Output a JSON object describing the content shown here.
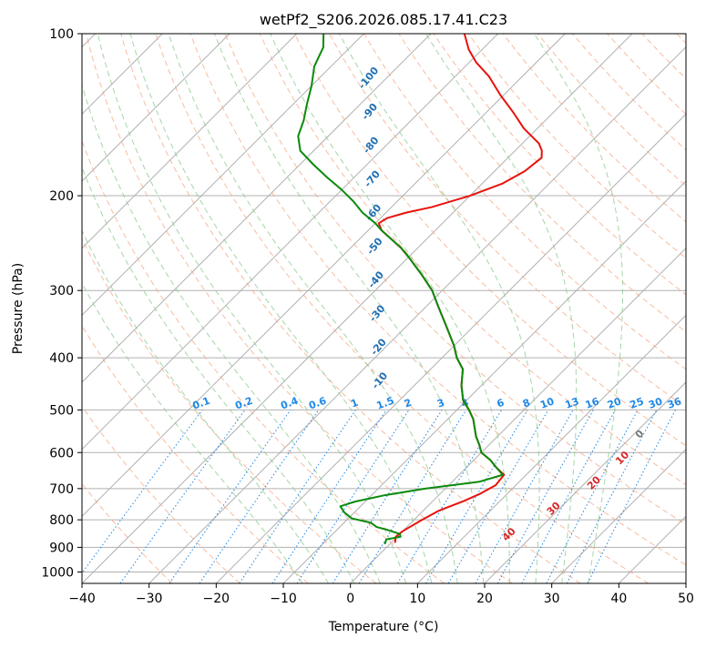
{
  "chart_data": {
    "type": "line",
    "chart_kind": "skew-T log-P diagram",
    "title": "wetPf2_S206.2026.085.17.41.C23",
    "xlabel": "Temperature (°C)",
    "ylabel": "Pressure (hPa)",
    "xlim": [
      -40,
      50
    ],
    "ylim": [
      1050,
      100
    ],
    "x_ticks": [
      -40,
      -30,
      -20,
      -10,
      0,
      10,
      20,
      30,
      40,
      50
    ],
    "x_tick_labels": [
      "−40",
      "−30",
      "−20",
      "−10",
      "0",
      "10",
      "20",
      "30",
      "40",
      "50"
    ],
    "y_ticks": [
      100,
      200,
      300,
      400,
      500,
      600,
      700,
      800,
      900,
      1000
    ],
    "y_tick_labels": [
      "100",
      "200",
      "300",
      "400",
      "500",
      "600",
      "700",
      "800",
      "900",
      "1000"
    ],
    "grid": true,
    "series": [
      {
        "name": "Temperature",
        "color": "#e8120c",
        "points": [
          [
            880,
            0.5
          ],
          [
            860,
            -0.2
          ],
          [
            840,
            0
          ],
          [
            800,
            1.2
          ],
          [
            770,
            2.3
          ],
          [
            740,
            4.5
          ],
          [
            715,
            6.0
          ],
          [
            690,
            7.0
          ],
          [
            660,
            6.7
          ],
          [
            640,
            4.5
          ],
          [
            620,
            2.5
          ],
          [
            600,
            0
          ],
          [
            580,
            -1.5
          ],
          [
            560,
            -3.2
          ],
          [
            520,
            -6.2
          ],
          [
            500,
            -8.2
          ],
          [
            480,
            -10.5
          ],
          [
            450,
            -13.0
          ],
          [
            420,
            -15.2
          ],
          [
            400,
            -17.8
          ],
          [
            380,
            -20.0
          ],
          [
            350,
            -24.0
          ],
          [
            320,
            -28.4
          ],
          [
            300,
            -31.5
          ],
          [
            280,
            -35.5
          ],
          [
            260,
            -40.0
          ],
          [
            250,
            -42.5
          ],
          [
            240,
            -45.5
          ],
          [
            232,
            -48.0
          ],
          [
            225,
            -49.5
          ],
          [
            220,
            -49.0
          ],
          [
            215,
            -47.0
          ],
          [
            210,
            -44.0
          ],
          [
            200,
            -40.0
          ],
          [
            190,
            -37.0
          ],
          [
            180,
            -35.5
          ],
          [
            170,
            -35.0
          ],
          [
            165,
            -36.0
          ],
          [
            160,
            -37.5
          ],
          [
            150,
            -42.0
          ],
          [
            140,
            -46.0
          ],
          [
            130,
            -50.5
          ],
          [
            120,
            -55.0
          ],
          [
            113,
            -59.0
          ],
          [
            107,
            -62.0
          ],
          [
            100,
            -65.0
          ]
        ]
      },
      {
        "name": "Dewpoint",
        "color": "#0b8a0b",
        "points": [
          [
            885,
            -0.8
          ],
          [
            870,
            -1.2
          ],
          [
            860,
            0.5
          ],
          [
            850,
            0
          ],
          [
            835,
            -2.5
          ],
          [
            825,
            -4.5
          ],
          [
            810,
            -6.0
          ],
          [
            795,
            -9.5
          ],
          [
            775,
            -11.5
          ],
          [
            755,
            -13.0
          ],
          [
            740,
            -11.5
          ],
          [
            720,
            -8.0
          ],
          [
            700,
            -3.0
          ],
          [
            680,
            4.0
          ],
          [
            660,
            6.5
          ],
          [
            640,
            4.5
          ],
          [
            620,
            2.5
          ],
          [
            600,
            0
          ],
          [
            580,
            -1.5
          ],
          [
            560,
            -3.2
          ],
          [
            520,
            -6.2
          ],
          [
            500,
            -8.2
          ],
          [
            480,
            -10.5
          ],
          [
            450,
            -13.0
          ],
          [
            420,
            -15.2
          ],
          [
            400,
            -17.8
          ],
          [
            380,
            -20.0
          ],
          [
            350,
            -24.0
          ],
          [
            320,
            -28.4
          ],
          [
            300,
            -31.5
          ],
          [
            280,
            -35.5
          ],
          [
            260,
            -40.0
          ],
          [
            250,
            -42.5
          ],
          [
            240,
            -45.5
          ],
          [
            232,
            -48.0
          ],
          [
            225,
            -50.0
          ],
          [
            215,
            -53.5
          ],
          [
            205,
            -56.5
          ],
          [
            195,
            -60.0
          ],
          [
            185,
            -64.0
          ],
          [
            175,
            -68.0
          ],
          [
            165,
            -72.0
          ],
          [
            155,
            -74.5
          ],
          [
            145,
            -76.0
          ],
          [
            135,
            -78.0
          ],
          [
            125,
            -80.0
          ],
          [
            115,
            -82.5
          ],
          [
            106,
            -84.0
          ],
          [
            100,
            -86.0
          ]
        ]
      }
    ],
    "mixing_ratio_lines": {
      "label_pressure": 500,
      "values": [
        0.1,
        0.2,
        0.4,
        0.6,
        1,
        1.5,
        2,
        3,
        4,
        6,
        8,
        10,
        13,
        16,
        20,
        25,
        30,
        36
      ],
      "labels": [
        "0.1",
        "0.2",
        "0.4",
        "0.6",
        "1",
        "1.5",
        "2",
        "3",
        "4",
        "6",
        "8",
        "10",
        "13",
        "16",
        "20",
        "25",
        "30",
        "36"
      ]
    },
    "moist_adiabat_labels": [
      "-100",
      "-90",
      "-80",
      "-70",
      "-60",
      "-50",
      "-40",
      "-30",
      "-20",
      "-10"
    ],
    "moist_adiabat_label_values": [
      -100,
      -90,
      -80,
      -70,
      -60,
      -50,
      -40,
      -30,
      -20,
      -10
    ],
    "dry_adiabat_labels": [
      "0",
      "10",
      "20",
      "30",
      "40"
    ],
    "dry_adiabat_label_values": [
      0,
      10,
      20,
      30,
      40
    ],
    "colors": {
      "isotherm": "#b0b0b0",
      "isobar": "#b0b0b0",
      "dry_adiabat": "#f4a582",
      "moist_adiabat": "#8fcb8f",
      "mixing_ratio": "#1e88e5",
      "theta_e": "#d2b48c"
    }
  }
}
